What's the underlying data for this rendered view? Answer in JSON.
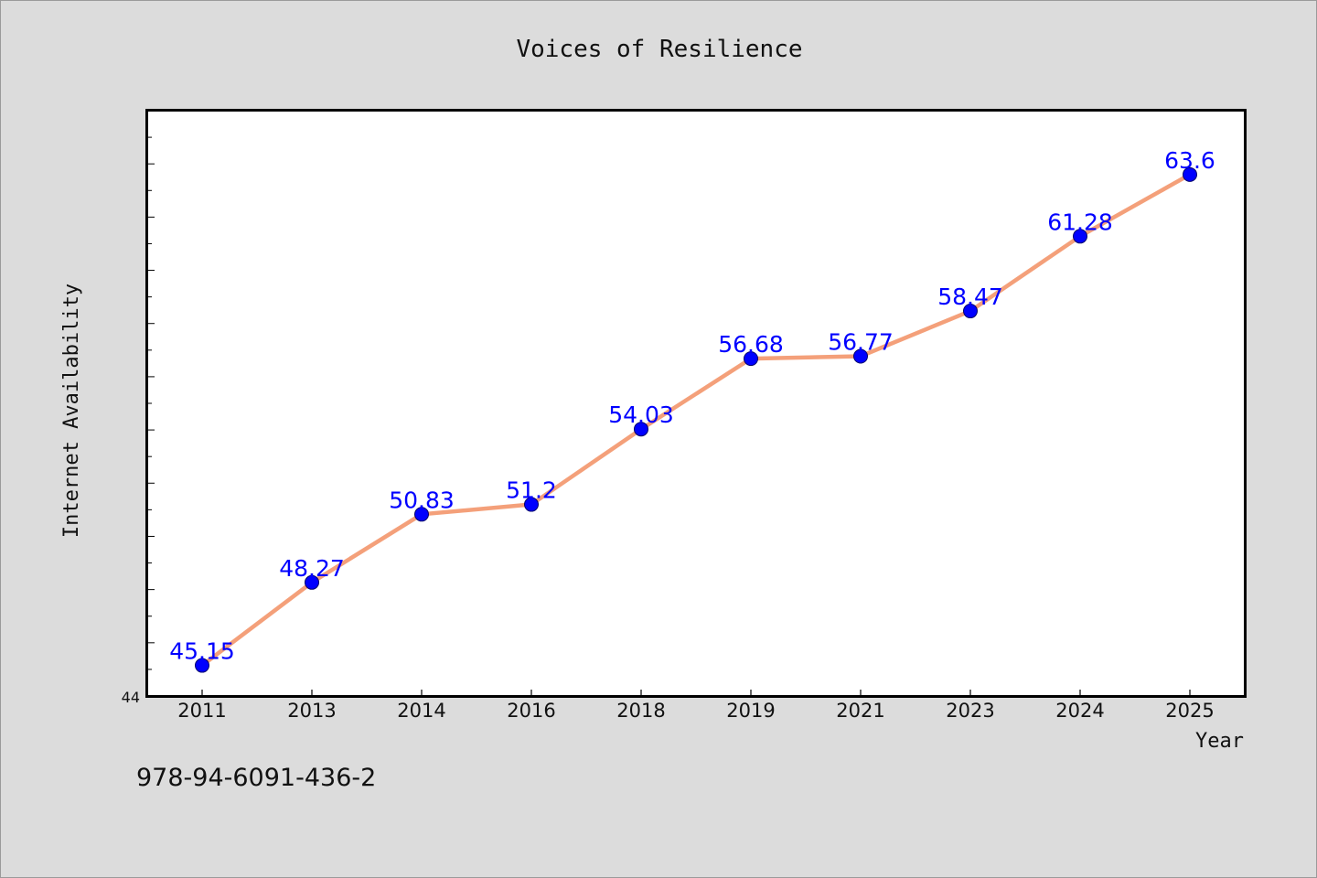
{
  "chart_data": {
    "type": "line",
    "title": "Voices of Resilience",
    "xlabel": "Year",
    "ylabel": "Internet Availability",
    "categories": [
      "2011",
      "2013",
      "2014",
      "2016",
      "2018",
      "2019",
      "2021",
      "2023",
      "2024",
      "2025"
    ],
    "series": [
      {
        "values": [
          45.15,
          48.27,
          50.83,
          51.2,
          54.03,
          56.68,
          56.77,
          58.47,
          61.28,
          63.6
        ],
        "labels": [
          "45.15",
          "48.27",
          "50.83",
          "51.2",
          "54.03",
          "56.68",
          "56.77",
          "58.47",
          "61.28",
          "63.6"
        ]
      }
    ],
    "ylim": [
      44,
      66
    ],
    "ytick_labels": [
      "44"
    ],
    "grid": false,
    "line_color": "#f4a07a",
    "marker_color": "#0000ff",
    "label_color": "#0000ff"
  },
  "footer": {
    "isbn": "978-94-6091-436-2"
  }
}
